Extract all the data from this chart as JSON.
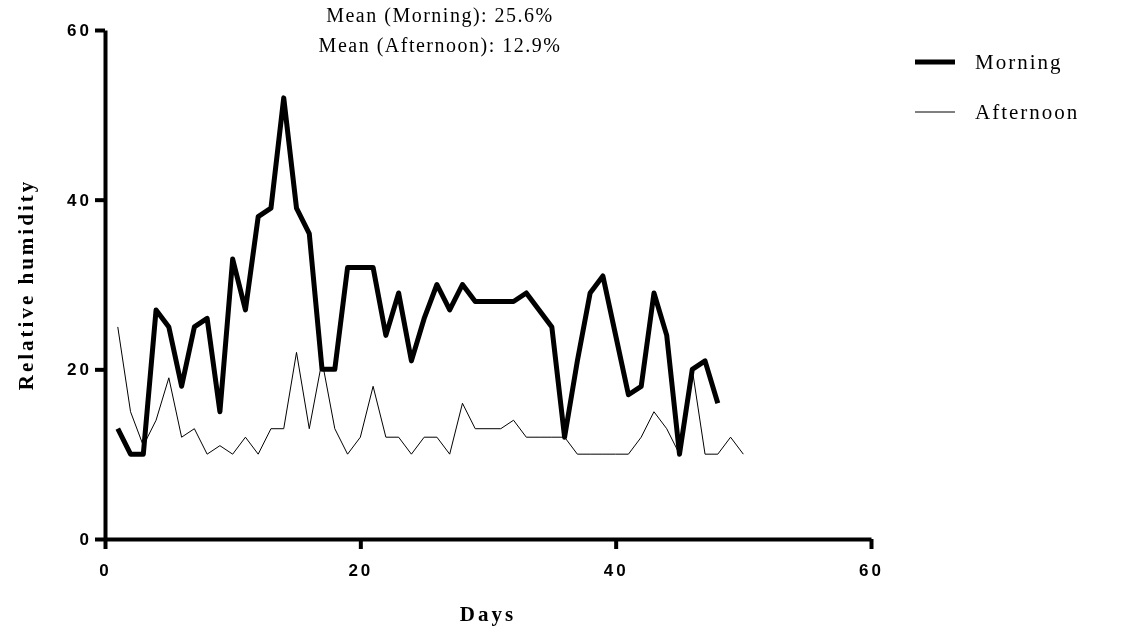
{
  "chart_data": {
    "type": "line",
    "xlabel": "Days",
    "ylabel": "Relative humidity",
    "annotations": [
      "Mean (Morning): 25.6%",
      "Mean (Afternoon): 12.9%"
    ],
    "xlim": [
      0,
      60
    ],
    "xticks": [
      0,
      20,
      40,
      60
    ],
    "ylim": [
      0,
      60
    ],
    "yticks": [
      0,
      20,
      40,
      60
    ],
    "grid": false,
    "legend": "top right",
    "marker": "none",
    "line_style": "solid",
    "series": [
      {
        "name": "Morning",
        "color": "#000000",
        "x": [
          1,
          2,
          3,
          4,
          5,
          6,
          7,
          8,
          9,
          10,
          11,
          12,
          13,
          14,
          15,
          16,
          17,
          18,
          19,
          20,
          21,
          22,
          23,
          24,
          25,
          26,
          27,
          28,
          29,
          30,
          31,
          32,
          33,
          34,
          35,
          36,
          37,
          38,
          39,
          40,
          41,
          42,
          43,
          44,
          45,
          46,
          47,
          48
        ],
        "values": [
          13,
          10,
          10,
          27,
          25,
          18,
          25,
          26,
          15,
          33,
          27,
          38,
          39,
          52,
          39,
          36,
          20,
          20,
          32,
          32,
          32,
          24,
          29,
          21,
          26,
          30,
          27,
          30,
          28,
          28,
          28,
          28,
          29,
          27,
          25,
          12,
          21,
          29,
          31,
          24,
          17,
          18,
          29,
          24,
          10,
          20,
          21,
          16
        ]
      },
      {
        "name": "Afternoon",
        "color": "#000000",
        "x": [
          1,
          2,
          3,
          4,
          5,
          6,
          7,
          8,
          9,
          10,
          11,
          12,
          13,
          14,
          15,
          16,
          17,
          18,
          19,
          20,
          21,
          22,
          23,
          24,
          25,
          26,
          27,
          28,
          29,
          30,
          31,
          32,
          33,
          34,
          35,
          36,
          37,
          38,
          39,
          40,
          41,
          42,
          43,
          44,
          45,
          46,
          47,
          48,
          49,
          50
        ],
        "values": [
          25,
          15,
          11,
          14,
          19,
          12,
          13,
          10,
          11,
          10,
          12,
          10,
          13,
          13,
          22,
          13,
          21,
          13,
          10,
          12,
          18,
          12,
          12,
          10,
          12,
          12,
          10,
          16,
          13,
          13,
          13,
          14,
          12,
          12,
          12,
          12,
          10,
          10,
          10,
          10,
          10,
          12,
          15,
          13,
          10,
          20,
          10,
          10,
          12,
          10
        ]
      }
    ]
  }
}
